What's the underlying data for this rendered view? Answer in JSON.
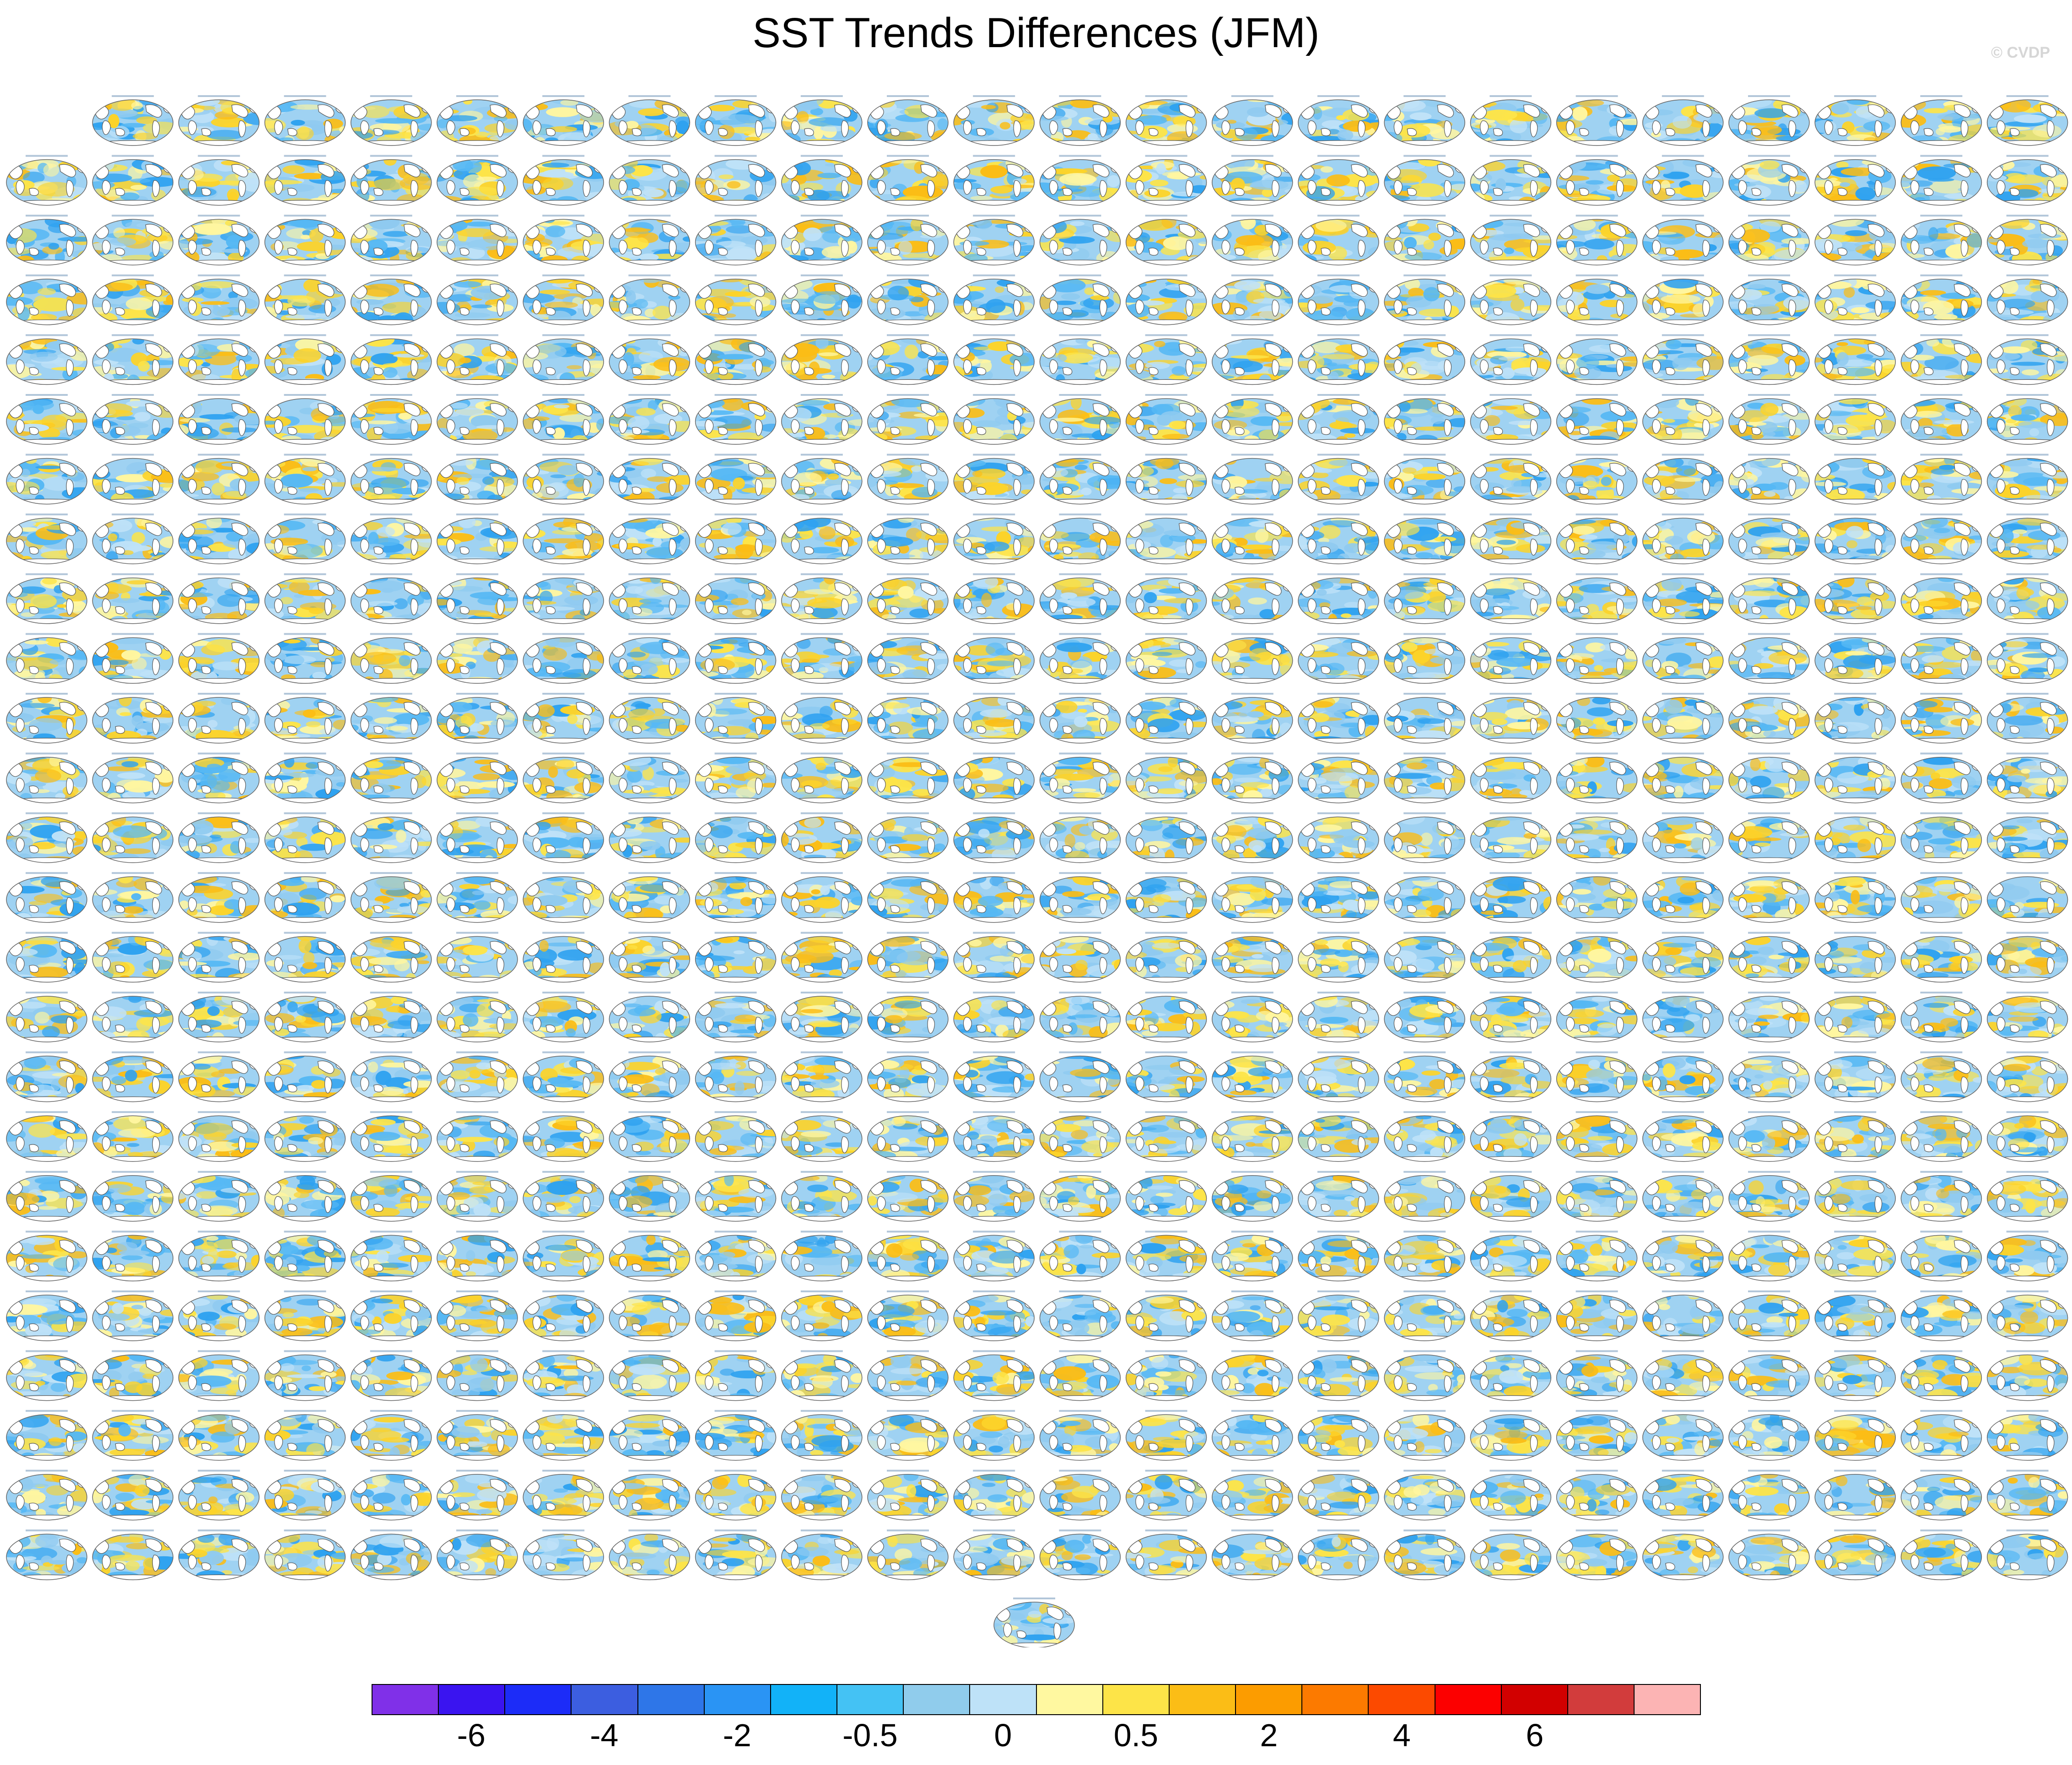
{
  "title": "SST Trends Differences (JFM)",
  "watermark": "© CVDP",
  "panel_grid": {
    "columns": 24,
    "rows": 25,
    "first_row_start_column": 1,
    "extra_row_panels": 1,
    "panel_content": "global SST trend difference map (Pacific-centered), land in white with coastlines; title text too small to read"
  },
  "colors": {
    "land": "#ffffff",
    "coastline": "#555555",
    "panel_border": "#666666",
    "warm_primary": "#fcd32a",
    "cool_primary": "#2fa2f0"
  },
  "chart_data": {
    "type": "heatmap",
    "title": "SST Trends Differences (JFM)",
    "colorbar": {
      "colors": [
        "#8030e8",
        "#3a14f0",
        "#1c2cf8",
        "#3c5ee0",
        "#2e76e8",
        "#2a94f4",
        "#12b2f8",
        "#44c2f4",
        "#90ccec",
        "#bee2f8",
        "#fff8a0",
        "#fde448",
        "#fbbd16",
        "#fc9c00",
        "#fc7a00",
        "#fc4a00",
        "#fc0000",
        "#d20000",
        "#d23c3c",
        "#fcb4b4"
      ],
      "tick_labels": [
        "-6",
        "-4",
        "-2",
        "-0.5",
        "0",
        "0.5",
        "2",
        "4",
        "6"
      ],
      "tick_boundary_index": [
        2,
        4,
        6,
        8,
        10,
        12,
        14,
        16,
        18
      ]
    }
  }
}
